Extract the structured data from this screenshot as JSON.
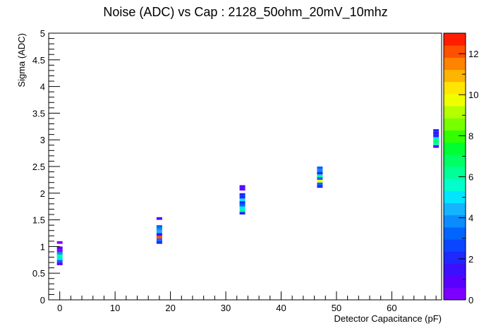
{
  "chart_data": {
    "type": "heatmap",
    "title": "Noise (ADC) vs Cap : 2128_50ohm_20mV_10mhz",
    "xlabel": "Detector Capacitance (pF)",
    "ylabel": "Sigma (ADC)",
    "xlim": [
      -2,
      69
    ],
    "ylim": [
      0,
      5
    ],
    "x_ticks": [
      0,
      10,
      20,
      30,
      40,
      50,
      60
    ],
    "y_ticks": [
      0,
      0.5,
      1,
      1.5,
      2,
      2.5,
      3,
      3.5,
      4,
      4.5,
      5
    ],
    "x_tick_labels": [
      "0",
      "10",
      "20",
      "30",
      "40",
      "50",
      "60"
    ],
    "y_tick_labels": [
      "0",
      "0.5",
      "1",
      "1.5",
      "2",
      "2.5",
      "3",
      "3.5",
      "4",
      "4.5",
      "5"
    ],
    "colorbar": {
      "min": 0,
      "max": 13,
      "ticks": [
        0,
        2,
        4,
        6,
        8,
        10,
        12
      ],
      "tick_labels": [
        "0",
        "2",
        "4",
        "6",
        "8",
        "10",
        "12"
      ],
      "colors": [
        "#7c00ff",
        "#5a00ff",
        "#3c10ff",
        "#1e28ff",
        "#0a46ff",
        "#0064ff",
        "#0a8cff",
        "#14b4ff",
        "#00e6ff",
        "#00ffcc",
        "#00ff96",
        "#00ff64",
        "#00ff32",
        "#32ff00",
        "#78ff00",
        "#b4ff00",
        "#f0ff00",
        "#ffe600",
        "#ffb400",
        "#ff8200",
        "#ff5000",
        "#ff1e00"
      ]
    },
    "bin_height": 0.05,
    "columns": [
      {
        "x": 0,
        "cells": [
          [
            0.65,
            1
          ],
          [
            0.7,
            3
          ],
          [
            0.75,
            5
          ],
          [
            0.8,
            6
          ],
          [
            0.85,
            4
          ],
          [
            0.9,
            0.5
          ],
          [
            0.95,
            1
          ],
          [
            1.05,
            0.5
          ]
        ]
      },
      {
        "x": 18,
        "cells": [
          [
            1.05,
            2
          ],
          [
            1.1,
            3
          ],
          [
            1.15,
            12
          ],
          [
            1.2,
            1.5
          ],
          [
            1.25,
            4.5
          ],
          [
            1.3,
            4
          ],
          [
            1.35,
            3
          ],
          [
            1.5,
            1
          ]
        ]
      },
      {
        "x": 33,
        "cells": [
          [
            1.6,
            2
          ],
          [
            1.65,
            6
          ],
          [
            1.7,
            5
          ],
          [
            1.75,
            3.5
          ],
          [
            1.8,
            2
          ],
          [
            1.85,
            5
          ],
          [
            1.9,
            2
          ],
          [
            1.95,
            2
          ],
          [
            2.05,
            1
          ],
          [
            2.1,
            1
          ]
        ]
      },
      {
        "x": 47,
        "cells": [
          [
            2.1,
            2
          ],
          [
            2.15,
            3
          ],
          [
            2.2,
            10
          ],
          [
            2.25,
            3.5
          ],
          [
            2.3,
            6
          ],
          [
            2.35,
            2
          ],
          [
            2.4,
            4
          ],
          [
            2.45,
            3.5
          ]
        ]
      },
      {
        "x": 68,
        "cells": [
          [
            2.85,
            1
          ],
          [
            2.9,
            6
          ],
          [
            2.95,
            7
          ],
          [
            3.0,
            5
          ],
          [
            3.05,
            2
          ],
          [
            3.1,
            1.5
          ],
          [
            3.15,
            2
          ]
        ]
      }
    ]
  }
}
